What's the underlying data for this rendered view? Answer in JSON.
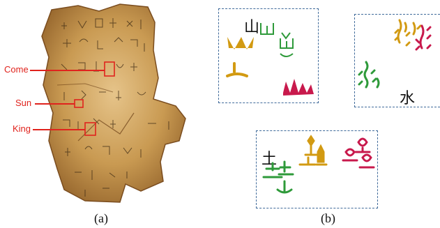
{
  "panel_a": {
    "caption": "(a)",
    "labels": {
      "come": "Come",
      "sun": "Sun",
      "king": "King"
    }
  },
  "panel_b": {
    "caption": "(b)",
    "characters": {
      "mountain": "山",
      "water": "水",
      "earth": "土"
    }
  },
  "colors": {
    "highlight": "#e0231d",
    "panel_border": "#3f6a9a",
    "gold": "#d29a12",
    "green": "#2e9a3a",
    "crimson": "#c8194c",
    "bone": "#c89a52"
  }
}
